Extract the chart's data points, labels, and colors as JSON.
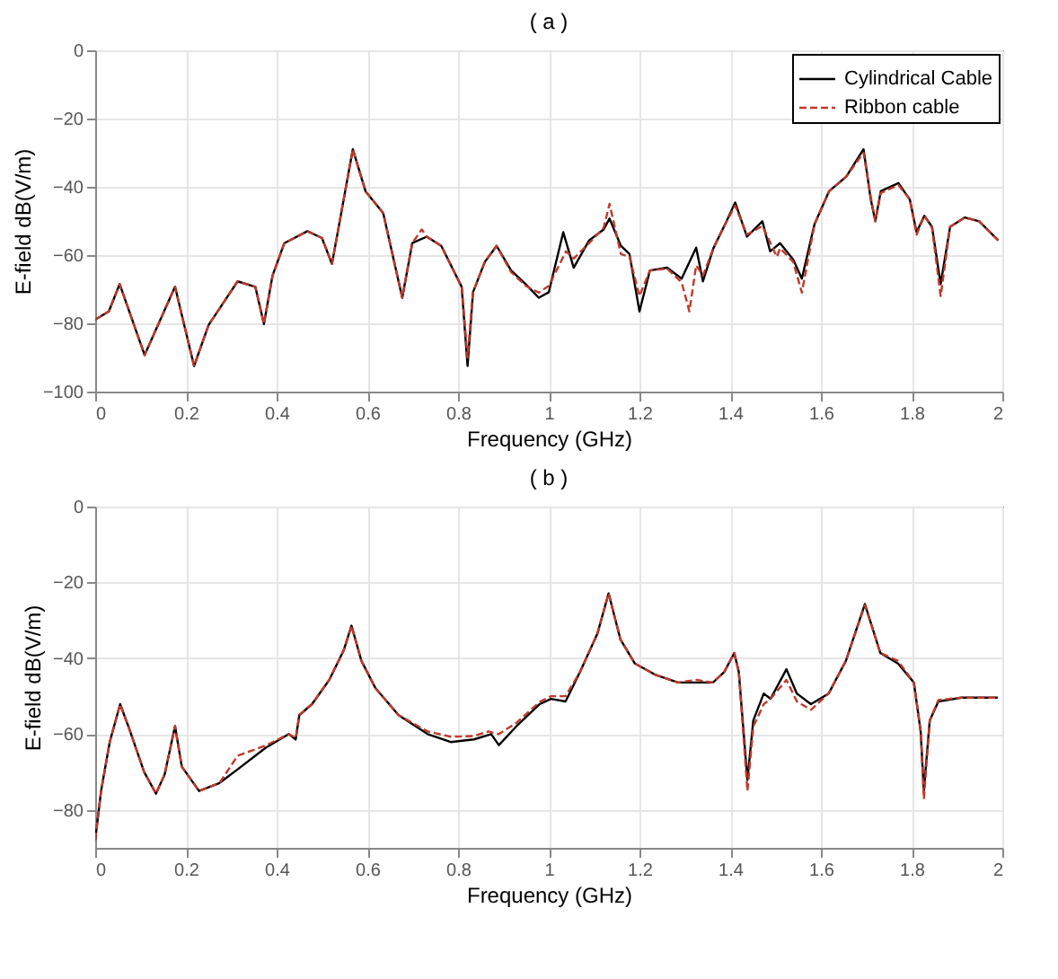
{
  "chart_data": [
    {
      "type": "line",
      "title": "( a )",
      "xlabel": "Frequency (GHz)",
      "ylabel": "E-field dB(V/m)",
      "xlim": [
        0,
        2
      ],
      "xticks": [
        0,
        0.2,
        0.4,
        0.6,
        0.8,
        1,
        1.2,
        1.4,
        1.6,
        1.8,
        2
      ],
      "ylim": [
        -100,
        0
      ],
      "yticks": [
        -100,
        -80,
        -60,
        -40,
        -20,
        0
      ],
      "grid": true,
      "legend": "top right",
      "series": [
        {
          "name": "Cylindrical Cable",
          "color": "#000000",
          "line_style": "solid",
          "x": [
            0,
            0.03,
            0.054,
            0.109,
            0.176,
            0.218,
            0.25,
            0.314,
            0.353,
            0.372,
            0.391,
            0.417,
            0.468,
            0.5,
            0.522,
            0.568,
            0.596,
            0.635,
            0.677,
            0.699,
            0.731,
            0.763,
            0.808,
            0.821,
            0.833,
            0.859,
            0.885,
            0.917,
            0.949,
            0.978,
            1.0,
            1.032,
            1.055,
            1.089,
            1.121,
            1.134,
            1.159,
            1.178,
            1.2,
            1.223,
            1.261,
            1.293,
            1.325,
            1.34,
            1.363,
            1.389,
            1.411,
            1.437,
            1.471,
            1.488,
            1.51,
            1.539,
            1.558,
            1.586,
            1.618,
            1.656,
            1.694,
            1.71,
            1.72,
            1.732,
            1.771,
            1.796,
            1.811,
            1.828,
            1.845,
            1.864,
            1.885,
            1.917,
            1.949,
            1.991
          ],
          "values": [
            -78.9,
            -76.5,
            -68.5,
            -89.3,
            -69.3,
            -92.5,
            -80.5,
            -67.7,
            -69.3,
            -80.2,
            -66,
            -56.5,
            -53,
            -55,
            -62.6,
            -29,
            -41.3,
            -47.7,
            -72.5,
            -56.5,
            -54.6,
            -57.3,
            -69.3,
            -92.5,
            -70.9,
            -62,
            -57.3,
            -64.5,
            -68.5,
            -72.5,
            -70.9,
            -53.3,
            -63.7,
            -55.7,
            -52.5,
            -49.3,
            -57.3,
            -59.7,
            -76.5,
            -64.5,
            -63.7,
            -66.9,
            -57.8,
            -67.7,
            -58,
            -50.9,
            -44.6,
            -54.6,
            -50.1,
            -58.9,
            -56.5,
            -61.3,
            -66.9,
            -50.9,
            -41.3,
            -37,
            -29,
            -43.7,
            -50.1,
            -41.3,
            -38.9,
            -43.7,
            -53.3,
            -48.5,
            -51.7,
            -68.5,
            -51.7,
            -49,
            -50.1,
            -55.7
          ]
        },
        {
          "name": "Ribbon cable",
          "color": "#c0392b",
          "line_style": "dashed",
          "x": [
            0,
            0.03,
            0.054,
            0.109,
            0.176,
            0.218,
            0.25,
            0.314,
            0.353,
            0.372,
            0.391,
            0.417,
            0.468,
            0.5,
            0.522,
            0.568,
            0.596,
            0.635,
            0.677,
            0.699,
            0.72,
            0.731,
            0.763,
            0.808,
            0.821,
            0.833,
            0.859,
            0.885,
            0.917,
            0.949,
            0.978,
            1.0,
            1.038,
            1.055,
            1.089,
            1.121,
            1.134,
            1.159,
            1.178,
            1.2,
            1.223,
            1.261,
            1.293,
            1.31,
            1.325,
            1.34,
            1.363,
            1.389,
            1.411,
            1.437,
            1.471,
            1.503,
            1.51,
            1.539,
            1.558,
            1.586,
            1.618,
            1.656,
            1.694,
            1.71,
            1.72,
            1.732,
            1.771,
            1.796,
            1.811,
            1.828,
            1.845,
            1.864,
            1.885,
            1.917,
            1.949,
            1.991
          ],
          "values": [
            -78.9,
            -76.5,
            -68.5,
            -89.3,
            -69.3,
            -92.5,
            -80.5,
            -67.7,
            -69.3,
            -80.2,
            -66,
            -56.5,
            -53,
            -55,
            -62.6,
            -29,
            -41.3,
            -47.7,
            -72.5,
            -56.5,
            -52.5,
            -54.6,
            -57.3,
            -69.3,
            -90,
            -70.9,
            -62,
            -57.3,
            -65,
            -69,
            -71,
            -69,
            -58.9,
            -61,
            -56.5,
            -52,
            -45,
            -59.7,
            -60.5,
            -72,
            -64.5,
            -64,
            -68,
            -76.5,
            -63,
            -66,
            -58,
            -50.9,
            -45.5,
            -54,
            -51.5,
            -60.5,
            -58,
            -62,
            -71,
            -51,
            -41.3,
            -37,
            -30,
            -43,
            -50.1,
            -41.8,
            -39.5,
            -43.7,
            -54,
            -48.5,
            -52,
            -72,
            -51.7,
            -49,
            -50.1,
            -55.7
          ]
        }
      ]
    },
    {
      "type": "line",
      "title": "( b )",
      "xlabel": "Frequency (GHz)",
      "ylabel": "E-field dB(V/m)",
      "xlim": [
        0,
        2
      ],
      "xticks": [
        0,
        0.2,
        0.4,
        0.6,
        0.8,
        1,
        1.2,
        1.4,
        1.6,
        1.8,
        2
      ],
      "ylim": [
        -90,
        0
      ],
      "yticks": [
        -80,
        -60,
        -40,
        -20,
        0
      ],
      "grid": true,
      "legend": "top right",
      "series": [
        {
          "name": "Cylindrical Cable",
          "color": "#000000",
          "line_style": "solid",
          "x": [
            0,
            0.013,
            0.032,
            0.055,
            0.073,
            0.108,
            0.134,
            0.153,
            0.176,
            0.191,
            0.229,
            0.274,
            0.314,
            0.376,
            0.427,
            0.442,
            0.45,
            0.478,
            0.516,
            0.548,
            0.565,
            0.587,
            0.618,
            0.669,
            0.733,
            0.784,
            0.835,
            0.873,
            0.89,
            0.929,
            0.98,
            1.005,
            1.037,
            1.069,
            1.107,
            1.132,
            1.158,
            1.19,
            1.234,
            1.285,
            1.326,
            1.362,
            1.387,
            1.409,
            1.419,
            1.438,
            1.451,
            1.474,
            1.489,
            1.524,
            1.547,
            1.578,
            1.617,
            1.655,
            1.697,
            1.731,
            1.77,
            1.805,
            1.82,
            1.827,
            1.84,
            1.859,
            1.91,
            1.99
          ],
          "values": [
            -87.9,
            -75,
            -62.1,
            -52.1,
            -57.9,
            -70,
            -75.7,
            -70.7,
            -57.9,
            -68.6,
            -75,
            -72.9,
            -69.3,
            -63.6,
            -60,
            -61.4,
            -55,
            -52.1,
            -45.7,
            -37.9,
            -31.4,
            -40.7,
            -47.9,
            -55,
            -60,
            -62.1,
            -61.4,
            -60,
            -62.9,
            -57.9,
            -52.1,
            -50.7,
            -51.4,
            -43.6,
            -33.6,
            -22.9,
            -35,
            -41.4,
            -44.3,
            -46.4,
            -46.4,
            -46.4,
            -43.6,
            -38.6,
            -43.6,
            -72.1,
            -56.4,
            -49.3,
            -50.7,
            -42.9,
            -49.3,
            -52.1,
            -49.3,
            -40.7,
            -25.7,
            -38.6,
            -41.4,
            -46.4,
            -59.3,
            -75,
            -56.4,
            -51.4,
            -50.4,
            -50.4
          ]
        },
        {
          "name": "Ribbon cable",
          "color": "#c0392b",
          "line_style": "dashed",
          "x": [
            0,
            0.013,
            0.032,
            0.055,
            0.073,
            0.108,
            0.134,
            0.153,
            0.176,
            0.191,
            0.229,
            0.274,
            0.314,
            0.376,
            0.427,
            0.442,
            0.45,
            0.478,
            0.516,
            0.548,
            0.565,
            0.587,
            0.618,
            0.669,
            0.733,
            0.784,
            0.835,
            0.867,
            0.89,
            0.929,
            0.98,
            1.005,
            1.037,
            1.069,
            1.107,
            1.132,
            1.158,
            1.19,
            1.234,
            1.285,
            1.326,
            1.362,
            1.387,
            1.409,
            1.419,
            1.438,
            1.451,
            1.474,
            1.489,
            1.524,
            1.547,
            1.578,
            1.617,
            1.655,
            1.697,
            1.731,
            1.77,
            1.805,
            1.82,
            1.827,
            1.84,
            1.859,
            1.91,
            1.99
          ],
          "values": [
            -87.9,
            -75,
            -62.1,
            -52.1,
            -57.9,
            -70,
            -75.7,
            -70.7,
            -57.9,
            -68.6,
            -75,
            -72.9,
            -65.7,
            -63,
            -60,
            -61,
            -55,
            -52.1,
            -45.7,
            -37.9,
            -31.4,
            -40.7,
            -47.9,
            -55,
            -59.3,
            -60.7,
            -60.5,
            -59.3,
            -60,
            -57,
            -51.5,
            -50,
            -50,
            -43.6,
            -33.6,
            -22.9,
            -35,
            -41.4,
            -44.3,
            -46.4,
            -45.7,
            -46.4,
            -43.6,
            -38.6,
            -43.6,
            -75,
            -58,
            -52.1,
            -50.7,
            -45.7,
            -51.4,
            -53.6,
            -49.3,
            -40.7,
            -26,
            -38.6,
            -40.7,
            -46.4,
            -59.3,
            -77.1,
            -56.4,
            -51,
            -50.4,
            -50.4
          ]
        }
      ]
    }
  ]
}
